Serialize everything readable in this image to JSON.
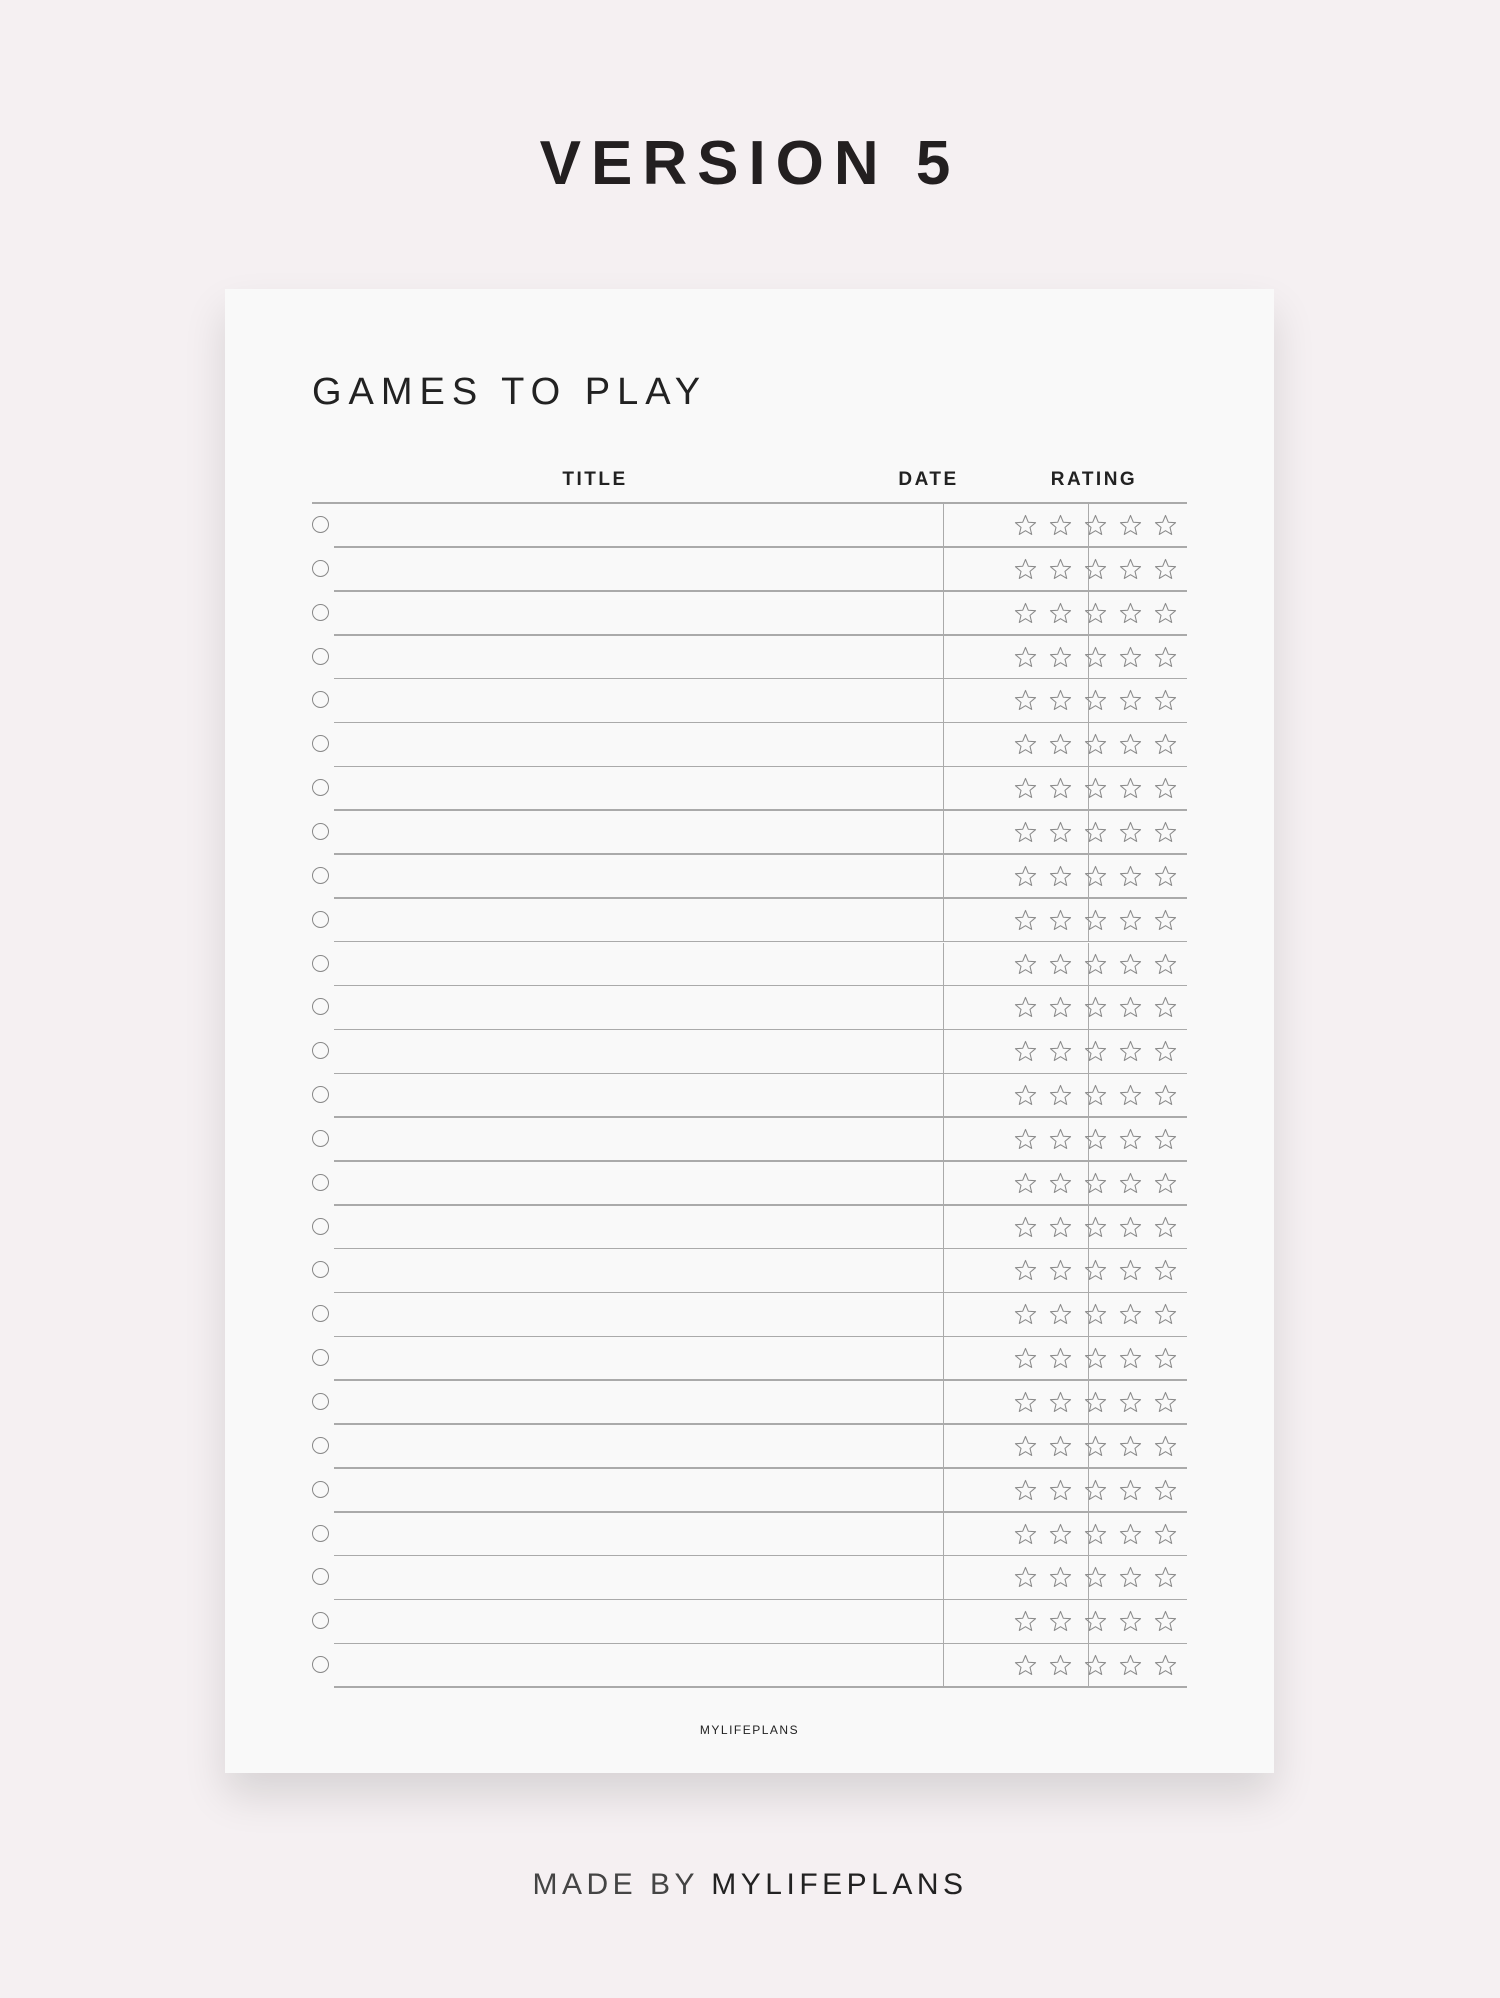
{
  "heading": "VERSION 5",
  "planner": {
    "title": "GAMES TO PLAY",
    "columns": {
      "title": "TITLE",
      "date": "DATE",
      "rating": "RATING"
    },
    "rating_max": 5,
    "rows": [
      {
        "title": "",
        "date": "",
        "rating": 0
      },
      {
        "title": "",
        "date": "",
        "rating": 0
      },
      {
        "title": "",
        "date": "",
        "rating": 0
      },
      {
        "title": "",
        "date": "",
        "rating": 0
      },
      {
        "title": "",
        "date": "",
        "rating": 0
      },
      {
        "title": "",
        "date": "",
        "rating": 0
      },
      {
        "title": "",
        "date": "",
        "rating": 0
      },
      {
        "title": "",
        "date": "",
        "rating": 0
      },
      {
        "title": "",
        "date": "",
        "rating": 0
      },
      {
        "title": "",
        "date": "",
        "rating": 0
      },
      {
        "title": "",
        "date": "",
        "rating": 0
      },
      {
        "title": "",
        "date": "",
        "rating": 0
      },
      {
        "title": "",
        "date": "",
        "rating": 0
      },
      {
        "title": "",
        "date": "",
        "rating": 0
      },
      {
        "title": "",
        "date": "",
        "rating": 0
      },
      {
        "title": "",
        "date": "",
        "rating": 0
      },
      {
        "title": "",
        "date": "",
        "rating": 0
      },
      {
        "title": "",
        "date": "",
        "rating": 0
      },
      {
        "title": "",
        "date": "",
        "rating": 0
      },
      {
        "title": "",
        "date": "",
        "rating": 0
      },
      {
        "title": "",
        "date": "",
        "rating": 0
      },
      {
        "title": "",
        "date": "",
        "rating": 0
      },
      {
        "title": "",
        "date": "",
        "rating": 0
      },
      {
        "title": "",
        "date": "",
        "rating": 0
      },
      {
        "title": "",
        "date": "",
        "rating": 0
      },
      {
        "title": "",
        "date": "",
        "rating": 0
      },
      {
        "title": "",
        "date": "",
        "rating": 0
      }
    ],
    "footer": "MYLIFEPLANS"
  },
  "credit": {
    "prefix": "MADE BY",
    "brand": "MYLIFEPLANS"
  },
  "colors": {
    "background": "#f5f0f2",
    "paper": "#f9f9f9",
    "lines": "#aaaaaa",
    "text": "#222222"
  }
}
